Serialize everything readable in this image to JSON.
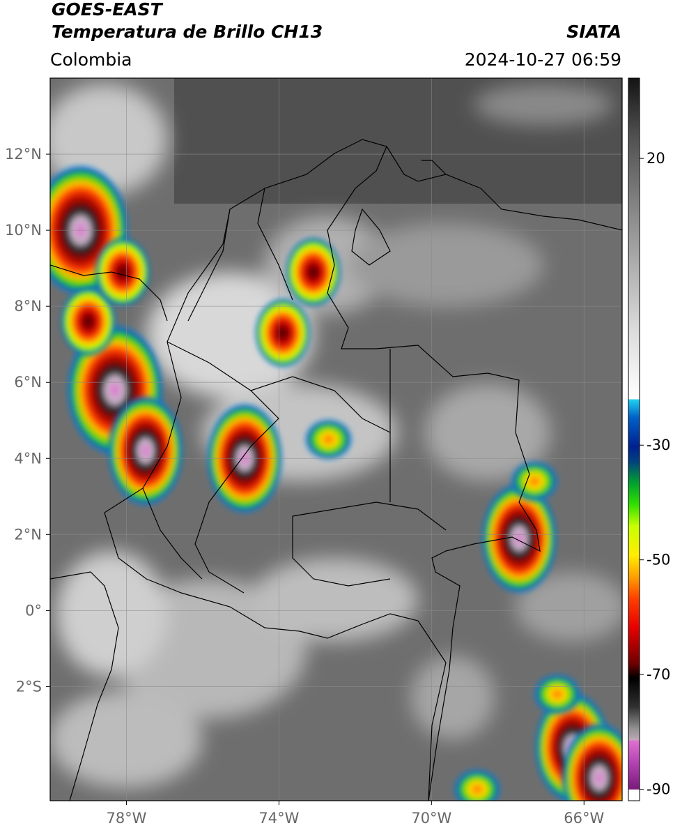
{
  "header": {
    "satellite": "GOES-EAST",
    "product": "Temperatura de Brillo CH13",
    "region": "Colombia",
    "agency": "SIATA",
    "datetime": "2024-10-27 06:59"
  },
  "map": {
    "lon_range": [
      -80,
      -65
    ],
    "lat_range": [
      -5,
      14
    ],
    "lon_ticks": [
      {
        "value": -78,
        "label": "78°W"
      },
      {
        "value": -74,
        "label": "74°W"
      },
      {
        "value": -70,
        "label": "70°W"
      },
      {
        "value": -66,
        "label": "66°W"
      }
    ],
    "lat_ticks": [
      {
        "value": 12,
        "label": "12°N"
      },
      {
        "value": 10,
        "label": "10°N"
      },
      {
        "value": 8,
        "label": "8°N"
      },
      {
        "value": 6,
        "label": "6°N"
      },
      {
        "value": 4,
        "label": "4°N"
      },
      {
        "value": 2,
        "label": "2°N"
      },
      {
        "value": 0,
        "label": "0°"
      },
      {
        "value": -2,
        "label": "2°S"
      }
    ],
    "gridlines": true,
    "storm_cells": [
      {
        "lon": -79.2,
        "lat": 10.0,
        "intensity": "very-cold"
      },
      {
        "lon": -78.3,
        "lat": 5.8,
        "intensity": "very-cold"
      },
      {
        "lon": -77.5,
        "lat": 4.2,
        "intensity": "cold"
      },
      {
        "lon": -74.9,
        "lat": 4.0,
        "intensity": "cold"
      },
      {
        "lon": -73.9,
        "lat": 7.3,
        "intensity": "medium"
      },
      {
        "lon": -73.1,
        "lat": 8.9,
        "intensity": "medium"
      },
      {
        "lon": -72.7,
        "lat": 4.5,
        "intensity": "warm"
      },
      {
        "lon": -67.7,
        "lat": 1.9,
        "intensity": "cold"
      },
      {
        "lon": -79.0,
        "lat": 7.6,
        "intensity": "medium"
      },
      {
        "lon": -78.1,
        "lat": 8.9,
        "intensity": "medium"
      },
      {
        "lon": -67.3,
        "lat": 3.4,
        "intensity": "warm"
      },
      {
        "lon": -66.3,
        "lat": -3.6,
        "intensity": "cold"
      },
      {
        "lon": -66.7,
        "lat": -2.2,
        "intensity": "warm"
      },
      {
        "lon": -65.6,
        "lat": -4.4,
        "intensity": "cold"
      },
      {
        "lon": -68.8,
        "lat": -4.7,
        "intensity": "warm"
      }
    ]
  },
  "colorbar": {
    "range": [
      -92,
      34
    ],
    "ticks": [
      {
        "value": 20,
        "label": "20"
      },
      {
        "value": -30,
        "label": "-30"
      },
      {
        "value": -50,
        "label": "-50"
      },
      {
        "value": -70,
        "label": "-70"
      },
      {
        "value": -90,
        "label": "-90"
      }
    ]
  }
}
